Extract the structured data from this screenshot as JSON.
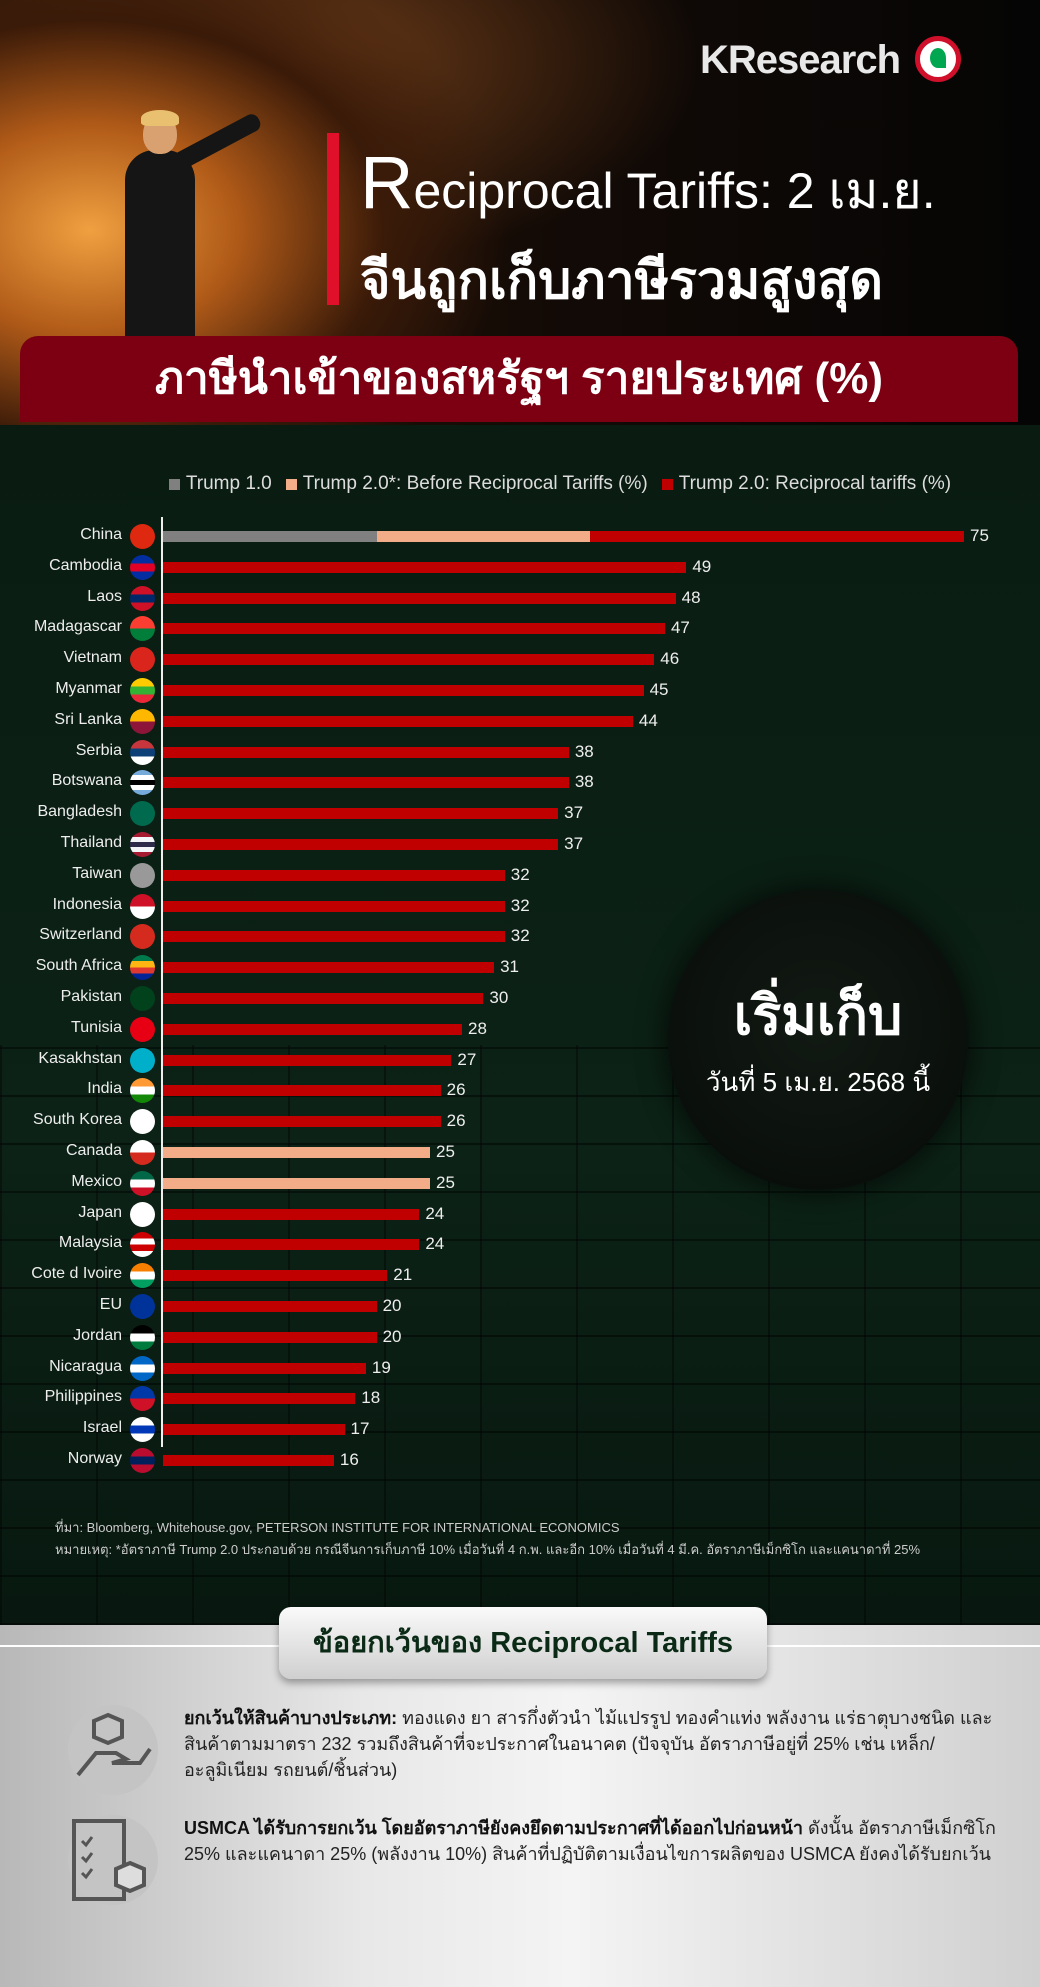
{
  "header": {
    "logo": "KResearch",
    "title_initial": "R",
    "title_rest": "eciprocal Tariffs: 2 เม.ย.",
    "subtitle": "จีนถูกเก็บภาษีรวมสูงสุด",
    "banner": "ภาษีนำเข้าของสหรัฐฯ รายประเทศ (%)"
  },
  "colors": {
    "trump1": "#808080",
    "before": "#f2ad88",
    "reciprocal": "#c00000"
  },
  "chart_data": {
    "type": "bar",
    "orientation": "horizontal",
    "stacked": true,
    "title": "ภาษีนำเข้าของสหรัฐฯ รายประเทศ (%)",
    "legend": [
      "Trump 1.0",
      "Trump 2.0*: Before Reciprocal Tariffs (%)",
      "Trump 2.0: Reciprocal tariffs (%)"
    ],
    "legend_position": "top",
    "categories": [
      "China",
      "Cambodia",
      "Laos",
      "Madagascar",
      "Vietnam",
      "Myanmar",
      "Sri Lanka",
      "Serbia",
      "Botswana",
      "Bangladesh",
      "Thailand",
      "Taiwan",
      "Indonesia",
      "Switzerland",
      "South Africa",
      "Pakistan",
      "Tunisia",
      "Kasakhstan",
      "India",
      "South Korea",
      "Canada",
      "Mexico",
      "Japan",
      "Malaysia",
      "Cote d Ivoire",
      "EU",
      "Jordan",
      "Nicaragua",
      "Philippines",
      "Israel",
      "Norway"
    ],
    "series": [
      {
        "name": "Trump 1.0",
        "values": [
          20,
          0,
          0,
          0,
          0,
          0,
          0,
          0,
          0,
          0,
          0,
          0,
          0,
          0,
          0,
          0,
          0,
          0,
          0,
          0,
          0,
          0,
          0,
          0,
          0,
          0,
          0,
          0,
          0,
          0,
          0
        ]
      },
      {
        "name": "Trump 2.0*: Before Reciprocal Tariffs (%)",
        "values": [
          20,
          0,
          0,
          0,
          0,
          0,
          0,
          0,
          0,
          0,
          0,
          0,
          0,
          0,
          0,
          0,
          0,
          0,
          0,
          0,
          25,
          25,
          0,
          0,
          0,
          0,
          0,
          0,
          0,
          0,
          0
        ]
      },
      {
        "name": "Trump 2.0: Reciprocal tariffs (%)",
        "values": [
          35,
          49,
          48,
          47,
          46,
          45,
          44,
          38,
          38,
          37,
          37,
          32,
          32,
          32,
          31,
          30,
          28,
          27,
          26,
          26,
          0,
          0,
          24,
          24,
          21,
          20,
          20,
          19,
          18,
          17,
          16
        ]
      }
    ],
    "totals": [
      75,
      49,
      48,
      47,
      46,
      45,
      44,
      38,
      38,
      37,
      37,
      32,
      32,
      32,
      31,
      30,
      28,
      27,
      26,
      26,
      25,
      25,
      24,
      24,
      21,
      20,
      20,
      19,
      18,
      17,
      16
    ],
    "xlim": [
      0,
      75
    ]
  },
  "flags": [
    [
      "#de2910"
    ],
    [
      "#032ea1",
      "#e00025",
      "#032ea1"
    ],
    [
      "#ce1126",
      "#002868",
      "#ce1126"
    ],
    [
      "#fc3d32",
      "#007e3a"
    ],
    [
      "#da251d"
    ],
    [
      "#fecb00",
      "#34b233",
      "#ea2839"
    ],
    [
      "#ffb700",
      "#8d153a"
    ],
    [
      "#c6363c",
      "#0c4076",
      "#fff"
    ],
    [
      "#75aadb",
      "#fff",
      "#000",
      "#fff",
      "#75aadb"
    ],
    [
      "#006a4e"
    ],
    [
      "#a51931",
      "#f4f5f8",
      "#2d2a4a",
      "#f4f5f8",
      "#a51931"
    ],
    [
      "#999"
    ],
    [
      "#ce1126",
      "#fff"
    ],
    [
      "#d52b1e"
    ],
    [
      "#007a4d",
      "#ffb612",
      "#de3831",
      "#002395"
    ],
    [
      "#01411c"
    ],
    [
      "#e70013"
    ],
    [
      "#00afca"
    ],
    [
      "#ff9933",
      "#fff",
      "#138808"
    ],
    [
      "#fff"
    ],
    [
      "#fff",
      "#d52b1e"
    ],
    [
      "#006847",
      "#fff",
      "#ce1126"
    ],
    [
      "#fff"
    ],
    [
      "#cc0001",
      "#fff",
      "#cc0001",
      "#fff"
    ],
    [
      "#f77f00",
      "#fff",
      "#009e60"
    ],
    [
      "#003399"
    ],
    [
      "#000",
      "#fff",
      "#007a3d"
    ],
    [
      "#0067c6",
      "#fff",
      "#0067c6"
    ],
    [
      "#0038a8",
      "#ce1126"
    ],
    [
      "#fff",
      "#0038b8",
      "#fff"
    ],
    [
      "#ba0c2f",
      "#00205b",
      "#ba0c2f"
    ]
  ],
  "callout": {
    "line1": "เริ่มเก็บ",
    "line2": "วันที่ 5 เม.ย. 2568 นี้"
  },
  "source": "ที่มา: Bloomberg, Whitehouse.gov, PETERSON INSTITUTE FOR INTERNATIONAL ECONOMICS",
  "note": "หมายเหตุ: *อัตราภาษี Trump 2.0 ประกอบด้วย กรณีจีนการเก็บภาษี 10% เมื่อวันที่ 4 ก.พ. และอีก 10% เมื่อวันที่ 4 มี.ค. อัตราภาษีเม็กซิโก และแคนาดาที่ 25%",
  "exceptions": {
    "title": "ข้อยกเว้นของ Reciprocal Tariffs",
    "items": [
      {
        "bold": "ยกเว้นให้สินค้าบางประเภท:",
        "text": " ทองแดง ยา สารกึ่งตัวนำ ไม้แปรรูป ทองคำแท่ง พลังงาน แร่ธาตุบางชนิด และสินค้าตามมาตรา 232 รวมถึงสินค้าที่จะประกาศในอนาคต (ปัจจุบัน อัตราภาษีอยู่ที่ 25% เช่น เหล็ก/อะลูมิเนียม รถยนต์/ชิ้นส่วน)"
      },
      {
        "bold": "USMCA ได้รับการยกเว้น โดยอัตราภาษียังคงยึดตามประกาศที่ได้ออกไปก่อนหน้า",
        "text": " ดังนั้น อัตราภาษีเม็กซิโก 25% และแคนาดา 25% (พลังงาน 10%) สินค้าที่ปฏิบัติตามเงื่อนไขการผลิตของ USMCA ยังคงได้รับยกเว้น"
      }
    ]
  }
}
